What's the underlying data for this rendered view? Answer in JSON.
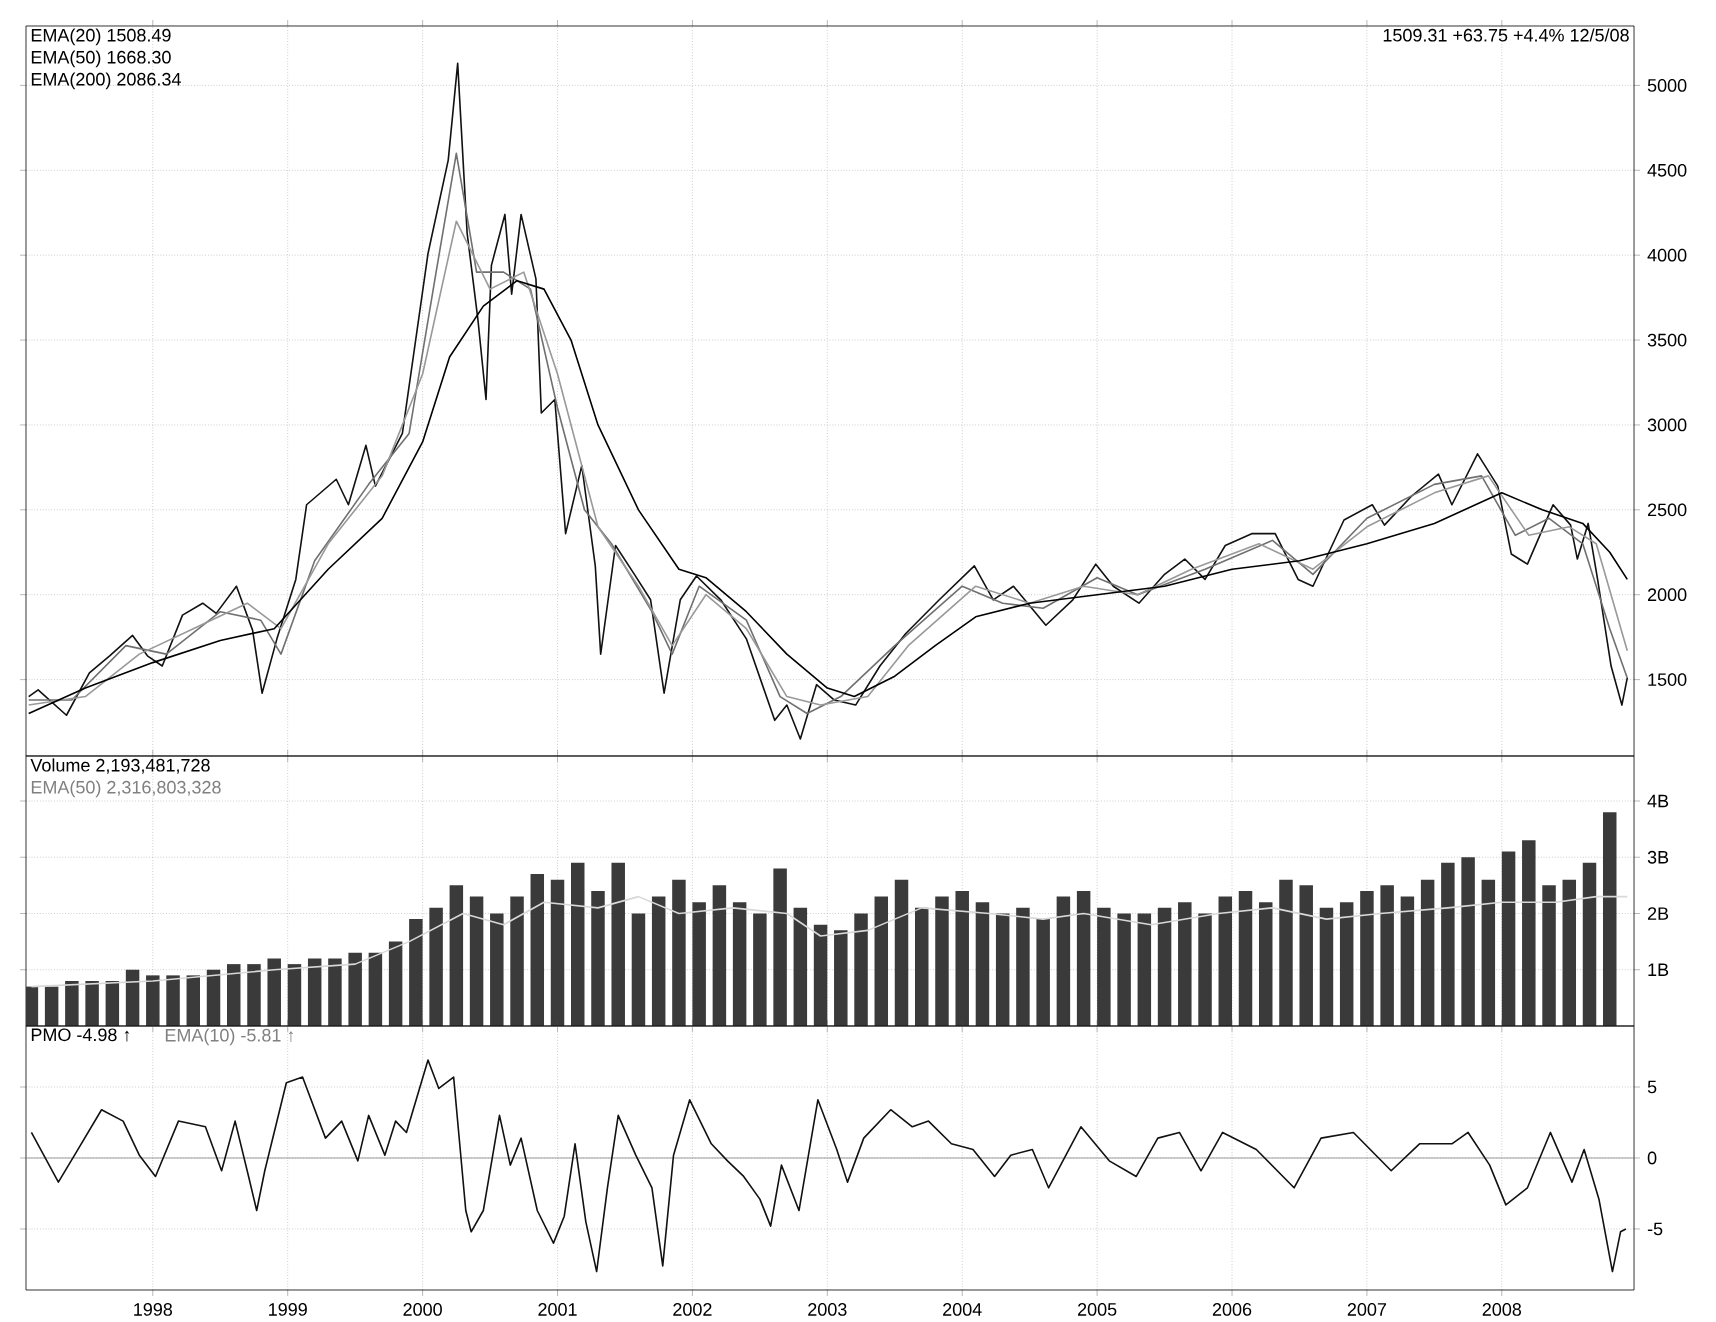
{
  "chart_data": [
    {
      "type": "line",
      "xlim": [
        1997.06,
        2008.98
      ],
      "ylim": [
        1050,
        5350
      ],
      "xticks": [
        1998,
        1999,
        2000,
        2001,
        2002,
        2003,
        2004,
        2005,
        2006,
        2007,
        2008
      ],
      "yticks": [
        1500,
        2000,
        2500,
        3000,
        3500,
        4000,
        4500,
        5000
      ],
      "grid": true,
      "tick_labels": "y",
      "annotations": [
        "EMA(20) 1508.49",
        "EMA(50) 1668.30",
        "EMA(200) 2086.34",
        "1509.31 +63.75 +4.4% 12/5/08"
      ],
      "series": [
        {
          "color": "#111111",
          "x": [
            1997.08,
            1997.15,
            1997.36,
            1997.53,
            1997.68,
            1997.85,
            1997.96,
            1998.07,
            1998.22,
            1998.37,
            1998.47,
            1998.62,
            1998.74,
            1998.81,
            1998.92,
            1999.06,
            1999.14,
            1999.36,
            1999.45,
            1999.58,
            1999.65,
            1999.85,
            2000.04,
            2000.19,
            2000.26,
            2000.33,
            2000.41,
            2000.47,
            2000.51,
            2000.61,
            2000.66,
            2000.73,
            2000.84,
            2000.88,
            2000.98,
            2001.06,
            2001.18,
            2001.28,
            2001.32,
            2001.43,
            2001.57,
            2001.69,
            2001.79,
            2001.91,
            2002.03,
            2002.21,
            2002.4,
            2002.61,
            2002.7,
            2002.8,
            2002.92,
            2003.05,
            2003.21,
            2003.39,
            2003.58,
            2003.83,
            2004.09,
            2004.23,
            2004.38,
            2004.62,
            2004.82,
            2004.99,
            2005.12,
            2005.31,
            2005.5,
            2005.65,
            2005.8,
            2005.95,
            2006.15,
            2006.32,
            2006.49,
            2006.6,
            2006.83,
            2007.04,
            2007.13,
            2007.33,
            2007.53,
            2007.63,
            2007.82,
            2007.97,
            2008.07,
            2008.19,
            2008.38,
            2008.51,
            2008.56,
            2008.64,
            2008.71,
            2008.81,
            2008.89,
            2008.93
          ],
          "values": [
            1400,
            1440,
            1290,
            1540,
            1640,
            1760,
            1640,
            1580,
            1880,
            1950,
            1890,
            2050,
            1790,
            1420,
            1740,
            2090,
            2530,
            2680,
            2530,
            2880,
            2640,
            2950,
            4010,
            4560,
            5130,
            4130,
            3620,
            3150,
            3940,
            4240,
            3770,
            4240,
            3860,
            3070,
            3150,
            2360,
            2760,
            2170,
            1650,
            2290,
            2120,
            1970,
            1420,
            1970,
            2110,
            1970,
            1740,
            1260,
            1350,
            1150,
            1470,
            1380,
            1350,
            1580,
            1770,
            1970,
            2170,
            1970,
            2050,
            1820,
            1970,
            2180,
            2050,
            1950,
            2120,
            2210,
            2090,
            2290,
            2360,
            2360,
            2090,
            2050,
            2440,
            2530,
            2410,
            2580,
            2710,
            2530,
            2830,
            2640,
            2240,
            2180,
            2530,
            2410,
            2210,
            2420,
            2090,
            1580,
            1350,
            1510
          ]
        },
        {
          "color": "#707070",
          "x": [
            1997.08,
            1997.4,
            1997.8,
            1998.1,
            1998.5,
            1998.8,
            1998.95,
            1999.2,
            1999.6,
            1999.9,
            2000.1,
            2000.25,
            2000.4,
            2000.6,
            2000.8,
            2001.0,
            2001.2,
            2001.4,
            2001.7,
            2001.85,
            2002.05,
            2002.4,
            2002.65,
            2002.85,
            2003.1,
            2003.5,
            2004.0,
            2004.3,
            2004.6,
            2005.0,
            2005.3,
            2005.8,
            2006.3,
            2006.6,
            2007.0,
            2007.5,
            2007.85,
            2008.1,
            2008.35,
            2008.6,
            2008.8,
            2008.93
          ],
          "values": [
            1380,
            1380,
            1700,
            1650,
            1900,
            1850,
            1650,
            2200,
            2650,
            2950,
            3900,
            4600,
            3900,
            3900,
            3800,
            3100,
            2500,
            2300,
            1900,
            1650,
            2050,
            1850,
            1400,
            1300,
            1400,
            1700,
            2050,
            1950,
            1920,
            2100,
            2000,
            2150,
            2320,
            2120,
            2450,
            2650,
            2700,
            2350,
            2450,
            2300,
            1800,
            1510
          ]
        },
        {
          "color": "#999999",
          "x": [
            1997.08,
            1997.5,
            1997.9,
            1998.3,
            1998.7,
            1998.95,
            1999.3,
            1999.7,
            2000.0,
            2000.25,
            2000.5,
            2000.75,
            2001.0,
            2001.3,
            2001.6,
            2001.85,
            2002.1,
            2002.4,
            2002.7,
            2002.95,
            2003.3,
            2003.6,
            2004.1,
            2004.5,
            2004.9,
            2005.3,
            2005.7,
            2006.2,
            2006.6,
            2007.0,
            2007.5,
            2007.9,
            2008.2,
            2008.5,
            2008.7,
            2008.93
          ],
          "values": [
            1350,
            1400,
            1650,
            1800,
            1950,
            1800,
            2300,
            2700,
            3300,
            4200,
            3800,
            3900,
            3300,
            2400,
            2050,
            1700,
            2000,
            1800,
            1400,
            1350,
            1400,
            1700,
            2050,
            1950,
            2050,
            2000,
            2150,
            2300,
            2150,
            2400,
            2600,
            2700,
            2350,
            2400,
            2300,
            1670
          ]
        },
        {
          "color": "#000000",
          "x": [
            1997.08,
            1997.5,
            1998.0,
            1998.5,
            1998.9,
            1999.3,
            1999.7,
            2000.0,
            2000.2,
            2000.45,
            2000.7,
            2000.9,
            2001.1,
            2001.3,
            2001.6,
            2001.9,
            2002.1,
            2002.4,
            2002.7,
            2003.0,
            2003.2,
            2003.5,
            2003.8,
            2004.1,
            2004.5,
            2005.0,
            2005.5,
            2006.0,
            2006.5,
            2007.0,
            2007.5,
            2008.0,
            2008.3,
            2008.6,
            2008.8,
            2008.93
          ],
          "values": [
            1300,
            1450,
            1600,
            1730,
            1800,
            2150,
            2450,
            2900,
            3400,
            3700,
            3850,
            3800,
            3500,
            3000,
            2500,
            2150,
            2100,
            1900,
            1650,
            1450,
            1400,
            1520,
            1700,
            1870,
            1950,
            2000,
            2050,
            2150,
            2200,
            2300,
            2420,
            2600,
            2500,
            2420,
            2250,
            2090
          ]
        }
      ]
    },
    {
      "type": "bar",
      "xlim": [
        1997.06,
        2008.98
      ],
      "ylim": [
        0,
        4.8
      ],
      "xticks": [
        1998,
        1999,
        2000,
        2001,
        2002,
        2003,
        2004,
        2005,
        2006,
        2007,
        2008
      ],
      "yticks": [
        {
          "value": 1,
          "label": "1B"
        },
        {
          "value": 2,
          "label": "2B"
        },
        {
          "value": 3,
          "label": "3B"
        },
        {
          "value": 4,
          "label": "4B"
        }
      ],
      "grid": true,
      "tick_labels": "y",
      "annotations": [
        "Volume 2,193,481,728",
        "EMA(50) 2,316,803,328"
      ],
      "series": [
        {
          "color": "#3a3a3a",
          "x": [
            1997.1,
            1997.25,
            1997.4,
            1997.55,
            1997.7,
            1997.85,
            1998.0,
            1998.15,
            1998.3,
            1998.45,
            1998.6,
            1998.75,
            1998.9,
            1999.05,
            1999.2,
            1999.35,
            1999.5,
            1999.65,
            1999.8,
            1999.95,
            2000.1,
            2000.25,
            2000.4,
            2000.55,
            2000.7,
            2000.85,
            2001.0,
            2001.15,
            2001.3,
            2001.45,
            2001.6,
            2001.75,
            2001.9,
            2002.05,
            2002.2,
            2002.35,
            2002.5,
            2002.65,
            2002.8,
            2002.95,
            2003.1,
            2003.25,
            2003.4,
            2003.55,
            2003.7,
            2003.85,
            2004.0,
            2004.15,
            2004.3,
            2004.45,
            2004.6,
            2004.75,
            2004.9,
            2005.05,
            2005.2,
            2005.35,
            2005.5,
            2005.65,
            2005.8,
            2005.95,
            2006.1,
            2006.25,
            2006.4,
            2006.55,
            2006.7,
            2006.85,
            2007.0,
            2007.15,
            2007.3,
            2007.45,
            2007.6,
            2007.75,
            2007.9,
            2008.05,
            2008.2,
            2008.35,
            2008.5,
            2008.65,
            2008.8
          ],
          "values": [
            0.7,
            0.7,
            0.8,
            0.8,
            0.8,
            1.0,
            0.9,
            0.9,
            0.9,
            1.0,
            1.1,
            1.1,
            1.2,
            1.1,
            1.2,
            1.2,
            1.3,
            1.3,
            1.5,
            1.9,
            2.1,
            2.5,
            2.3,
            2.0,
            2.3,
            2.7,
            2.6,
            2.9,
            2.4,
            2.9,
            2.0,
            2.3,
            2.6,
            2.2,
            2.5,
            2.2,
            2.0,
            2.8,
            2.1,
            1.8,
            1.7,
            2.0,
            2.3,
            2.6,
            2.1,
            2.3,
            2.4,
            2.2,
            2.0,
            2.1,
            1.9,
            2.3,
            2.4,
            2.1,
            2.0,
            2.0,
            2.1,
            2.2,
            2.0,
            2.3,
            2.4,
            2.2,
            2.6,
            2.5,
            2.1,
            2.2,
            2.4,
            2.5,
            2.3,
            2.6,
            2.9,
            3.0,
            2.6,
            3.1,
            3.3,
            2.5,
            2.6,
            2.9,
            3.8
          ]
        },
        {
          "type": "line",
          "color": "#d8d8d8",
          "x": [
            1997.1,
            1998.0,
            1998.9,
            1999.5,
            1999.9,
            2000.3,
            2000.6,
            2000.9,
            2001.3,
            2001.6,
            2001.9,
            2002.3,
            2002.7,
            2002.95,
            2003.3,
            2003.7,
            2004.2,
            2004.6,
            2004.9,
            2005.4,
            2005.9,
            2006.3,
            2006.7,
            2007.1,
            2007.6,
            2008.0,
            2008.4,
            2008.7,
            2008.93
          ],
          "values": [
            0.7,
            0.8,
            1.0,
            1.1,
            1.5,
            2.0,
            1.8,
            2.2,
            2.1,
            2.3,
            2.0,
            2.1,
            2.0,
            1.6,
            1.7,
            2.1,
            2.0,
            1.9,
            2.0,
            1.8,
            2.0,
            2.1,
            1.9,
            2.0,
            2.1,
            2.2,
            2.2,
            2.3,
            2.3
          ]
        }
      ]
    },
    {
      "type": "line",
      "xlim": [
        1997.06,
        2008.98
      ],
      "ylim": [
        -9.3,
        9.3
      ],
      "xticks": [
        1998,
        1999,
        2000,
        2001,
        2002,
        2003,
        2004,
        2005,
        2006,
        2007,
        2008
      ],
      "yticks": [
        -5,
        0,
        5
      ],
      "grid": true,
      "annotations": [
        "PMO -4.98 ↑",
        "EMA(10) -5.81 ↑"
      ],
      "ref_lines": [
        {
          "axis": "y",
          "value": 0,
          "color": "#888888"
        }
      ],
      "series": [
        {
          "color": "#111111",
          "x": [
            1997.1,
            1997.3,
            1997.42,
            1997.62,
            1997.78,
            1997.9,
            1998.02,
            1998.19,
            1998.39,
            1998.51,
            1998.61,
            1998.71,
            1998.77,
            1998.83,
            1998.99,
            1999.11,
            1999.28,
            1999.4,
            1999.52,
            1999.6,
            1999.72,
            1999.8,
            1999.88,
            2000.04,
            2000.12,
            2000.23,
            2000.32,
            2000.36,
            2000.45,
            2000.57,
            2000.65,
            2000.73,
            2000.85,
            2000.97,
            2001.05,
            2001.13,
            2001.21,
            2001.29,
            2001.37,
            2001.45,
            2001.58,
            2001.7,
            2001.78,
            2001.86,
            2001.98,
            2002.14,
            2002.26,
            2002.38,
            2002.5,
            2002.58,
            2002.66,
            2002.79,
            2002.93,
            2003.07,
            2003.15,
            2003.27,
            2003.47,
            2003.63,
            2003.75,
            2003.92,
            2004.08,
            2004.24,
            2004.36,
            2004.52,
            2004.64,
            2004.88,
            2005.09,
            2005.29,
            2005.45,
            2005.61,
            2005.77,
            2005.93,
            2006.18,
            2006.46,
            2006.66,
            2006.9,
            2007.18,
            2007.39,
            2007.63,
            2007.75,
            2007.91,
            2008.03,
            2008.19,
            2008.36,
            2008.52,
            2008.61,
            2008.72,
            2008.82,
            2008.88,
            2008.92
          ],
          "values": [
            1.8,
            -1.7,
            0.2,
            3.4,
            2.6,
            0.2,
            -1.3,
            2.6,
            2.2,
            -0.9,
            2.6,
            -1.3,
            -3.7,
            -0.9,
            5.3,
            5.7,
            1.4,
            2.6,
            -0.2,
            3.0,
            0.2,
            2.6,
            1.8,
            6.9,
            4.9,
            5.7,
            -3.7,
            -5.2,
            -3.7,
            3.0,
            -0.5,
            1.4,
            -3.7,
            -6.0,
            -4.1,
            1.0,
            -4.5,
            -8.0,
            -2.1,
            3.0,
            0.2,
            -2.1,
            -7.6,
            0.2,
            4.1,
            1.0,
            -0.2,
            -1.3,
            -2.9,
            -4.8,
            -0.5,
            -3.7,
            4.1,
            0.6,
            -1.7,
            1.4,
            3.4,
            2.2,
            2.6,
            1.0,
            0.6,
            -1.3,
            0.2,
            0.6,
            -2.1,
            2.2,
            -0.2,
            -1.3,
            1.4,
            1.8,
            -0.9,
            1.8,
            0.6,
            -2.1,
            1.4,
            1.8,
            -0.9,
            1.0,
            1.0,
            1.8,
            -0.5,
            -3.3,
            -2.1,
            1.8,
            -1.7,
            0.6,
            -2.9,
            -8.0,
            -5.2,
            -5.0
          ]
        }
      ]
    }
  ]
}
